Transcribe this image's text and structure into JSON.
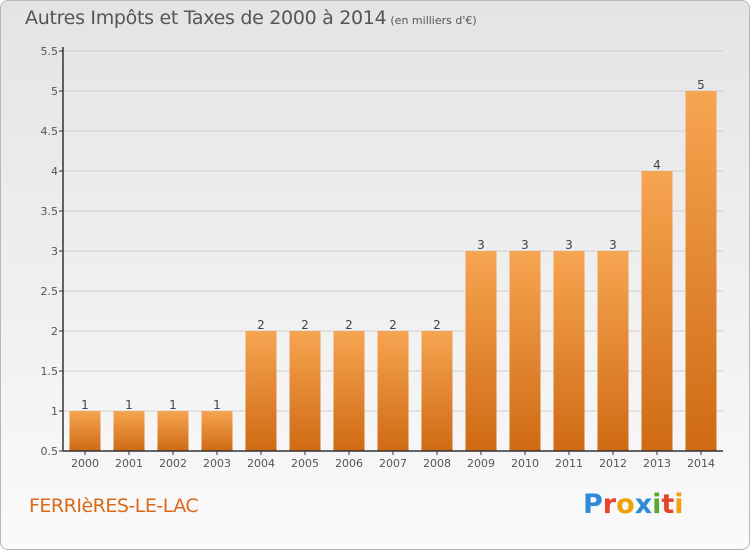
{
  "header": {
    "title": "Autres Impôts et Taxes de 2000 à 2014",
    "subtitle": "(en milliers d'€)"
  },
  "footer": {
    "commune": "FERRIèRES-LE-LAC",
    "logo_text": "Proxiti",
    "logo_colors": [
      "#2f8bd6",
      "#e7442e",
      "#f0a20a",
      "#2f8bd6",
      "#5aa832",
      "#e7442e",
      "#f0a20a"
    ]
  },
  "colors": {
    "bar_light": "#f7a551",
    "bar_dark": "#cf6a14",
    "axis": "#333333",
    "grid": "#cfcfcf",
    "text": "#555555"
  },
  "chart_data": {
    "type": "bar",
    "title": "Autres Impôts et Taxes de 2000 à 2014",
    "subtitle": "(en milliers d'€)",
    "xlabel": "",
    "ylabel": "",
    "categories": [
      "2000",
      "2001",
      "2002",
      "2003",
      "2004",
      "2005",
      "2006",
      "2007",
      "2008",
      "2009",
      "2010",
      "2011",
      "2012",
      "2013",
      "2014"
    ],
    "values": [
      1,
      1,
      1,
      1,
      2,
      2,
      2,
      2,
      2,
      3,
      3,
      3,
      3,
      4,
      5
    ],
    "data_labels": [
      "1",
      "1",
      "1",
      "1",
      "2",
      "2",
      "2",
      "2",
      "2",
      "3",
      "3",
      "3",
      "3",
      "4",
      "5"
    ],
    "ylim": [
      0.5,
      5.5
    ],
    "yticks": [
      0.5,
      1,
      1.5,
      2,
      2.5,
      3,
      3.5,
      4,
      4.5,
      5,
      5.5
    ],
    "ytick_labels": [
      "0.5",
      "1",
      "1.5",
      "2",
      "2.5",
      "3",
      "3.5",
      "4",
      "4.5",
      "5",
      "5.5"
    ],
    "grid": true,
    "legend": "none"
  }
}
